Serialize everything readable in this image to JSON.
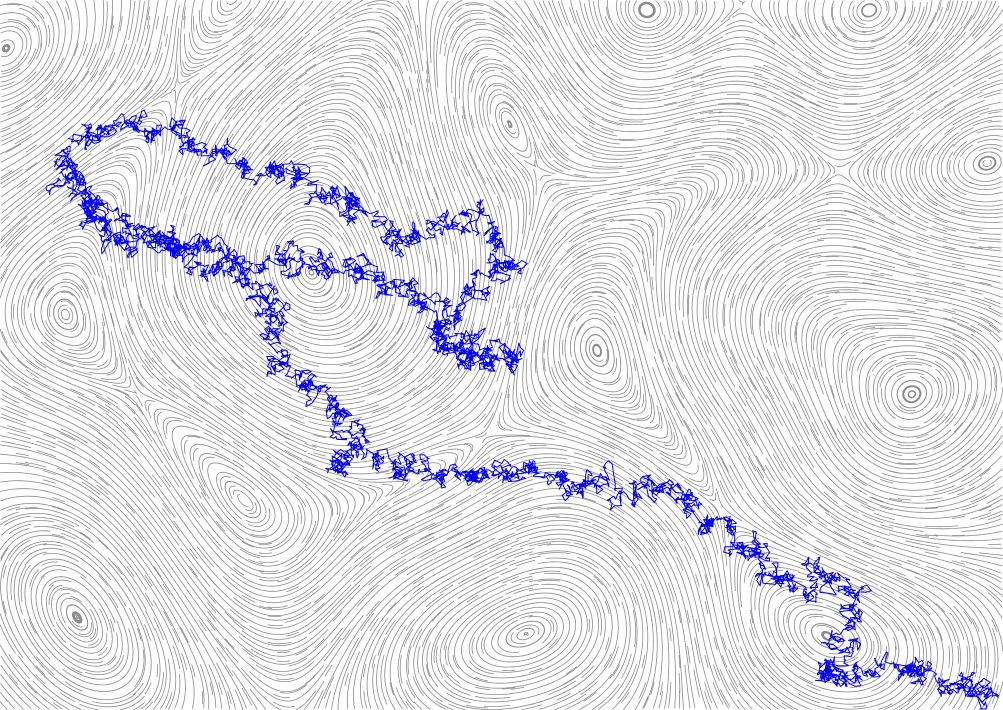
{
  "colors": {
    "background": "#ffffff",
    "streamline": "#8c8c8c",
    "trajectory": "#0000ee"
  },
  "trajectory_seed": 424242
}
